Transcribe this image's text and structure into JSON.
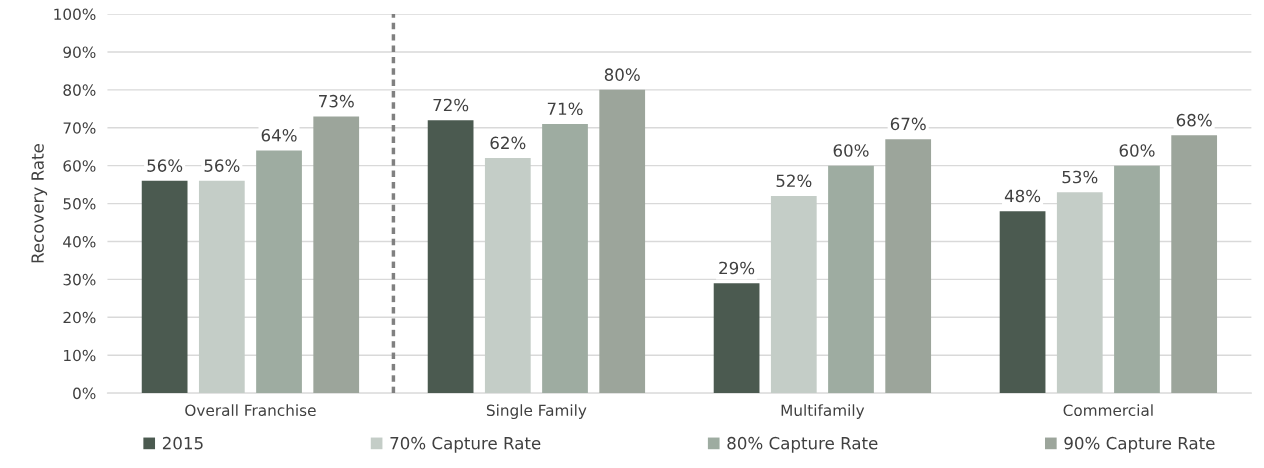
{
  "chart_data": {
    "type": "bar",
    "ylabel": "Recovery Rate",
    "categories": [
      "Overall Franchise",
      "Single Family",
      "Multifamily",
      "Commercial"
    ],
    "series": [
      {
        "name": "2015",
        "color": "#4b5a50",
        "values": [
          56,
          72,
          29,
          48
        ],
        "value_labels": [
          "56%",
          "72%",
          "29%",
          "48%"
        ]
      },
      {
        "name": "70% Capture Rate",
        "color": "#c4cdc7",
        "values": [
          56,
          62,
          52,
          53
        ],
        "value_labels": [
          "56%",
          "62%",
          "52%",
          "53%"
        ]
      },
      {
        "name": "80% Capture Rate",
        "color": "#9eaca1",
        "values": [
          64,
          71,
          60,
          60
        ],
        "value_labels": [
          "64%",
          "71%",
          "60%",
          "60%"
        ]
      },
      {
        "name": "90% Capture Rate",
        "color": "#9ca59b",
        "values": [
          73,
          80,
          67,
          68
        ],
        "value_labels": [
          "73%",
          "80%",
          "67%",
          "68%"
        ]
      }
    ],
    "ylim": [
      0,
      100
    ],
    "yticks": [
      {
        "value": 0,
        "label": "0%"
      },
      {
        "value": 10,
        "label": "10%"
      },
      {
        "value": 20,
        "label": "20%"
      },
      {
        "value": 30,
        "label": "30%"
      },
      {
        "value": 40,
        "label": "40%"
      },
      {
        "value": 50,
        "label": "50%"
      },
      {
        "value": 60,
        "label": "60%"
      },
      {
        "value": 70,
        "label": "70%"
      },
      {
        "value": 80,
        "label": "80%"
      },
      {
        "value": 90,
        "label": "90%"
      },
      {
        "value": 100,
        "label": "100%"
      }
    ],
    "grid": "y",
    "legend": "bottom"
  }
}
